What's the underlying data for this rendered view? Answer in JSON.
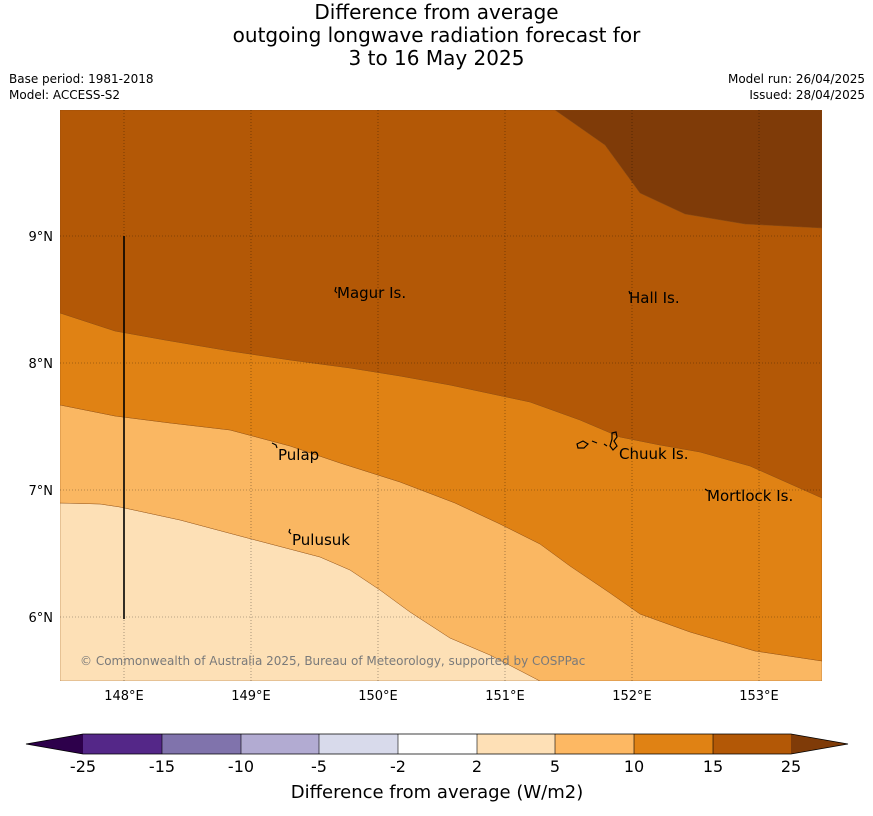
{
  "title": {
    "line1": "Difference from average",
    "line2": "outgoing longwave radiation forecast for",
    "line3": "3 to 16 May 2025"
  },
  "meta": {
    "base_period": "Base period: 1981-2018",
    "model": "Model: ACCESS-S2",
    "model_run": "Model run: 26/04/2025",
    "issued": "Issued: 28/04/2025"
  },
  "map": {
    "lat_ticks": [
      "9°N",
      "8°N",
      "7°N",
      "6°N"
    ],
    "lon_ticks": [
      "148°E",
      "149°E",
      "150°E",
      "151°E",
      "152°E",
      "153°E"
    ],
    "places": [
      "Magur Is.",
      "Hall Is.",
      "Pulap",
      "Chuuk Is.",
      "Mortlock Is.",
      "Pulusuk"
    ],
    "copyright": "© Commonwealth of Australia 2025, Bureau of Meteorology, supported by COSPPac",
    "fill_colors": {
      "band_2_5": "#fde0b6",
      "band_5_10": "#fab762",
      "band_10_15": "#e08214",
      "band_15_25": "#b35806",
      "band_25_plus": "#7f3b08",
      "band_neutral": "#ffffff"
    }
  },
  "colorbar": {
    "title": "Difference from average (W/m2)",
    "labels": [
      "-25",
      "-15",
      "-10",
      "-5",
      "-2",
      "2",
      "5",
      "10",
      "15",
      "25"
    ],
    "colors": [
      "#2d004b",
      "#542788",
      "#8073ac",
      "#b2abd2",
      "#d8daeb",
      "#ffffff",
      "#fee0b6",
      "#fdb863",
      "#e08214",
      "#b35806",
      "#7f3b08"
    ]
  }
}
